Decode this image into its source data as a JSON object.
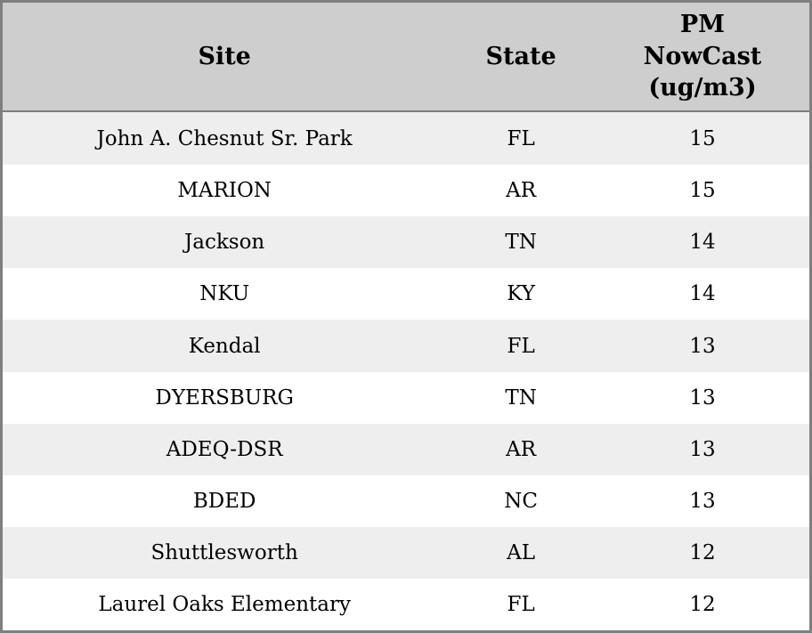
{
  "table": {
    "columns": [
      {
        "label": "Site"
      },
      {
        "label": "State"
      },
      {
        "label": "PM NowCast (ug/m3)"
      }
    ],
    "rows": [
      {
        "site": "John A. Chesnut Sr. Park",
        "state": "FL",
        "pm": "15"
      },
      {
        "site": "MARION",
        "state": "AR",
        "pm": "15"
      },
      {
        "site": "Jackson",
        "state": "TN",
        "pm": "14"
      },
      {
        "site": "NKU",
        "state": "KY",
        "pm": "14"
      },
      {
        "site": "Kendal",
        "state": "FL",
        "pm": "13"
      },
      {
        "site": "DYERSBURG",
        "state": "TN",
        "pm": "13"
      },
      {
        "site": "ADEQ-DSR",
        "state": "AR",
        "pm": "13"
      },
      {
        "site": "BDED",
        "state": "NC",
        "pm": "13"
      },
      {
        "site": "Shuttlesworth",
        "state": "AL",
        "pm": "12"
      },
      {
        "site": "Laurel Oaks Elementary",
        "state": "FL",
        "pm": "12"
      }
    ]
  },
  "colors": {
    "header_bg": "#cecece",
    "row_alt_bg": "#eeeeee",
    "row_bg": "#ffffff",
    "border": "#7f7f7f",
    "text": "#000000"
  }
}
